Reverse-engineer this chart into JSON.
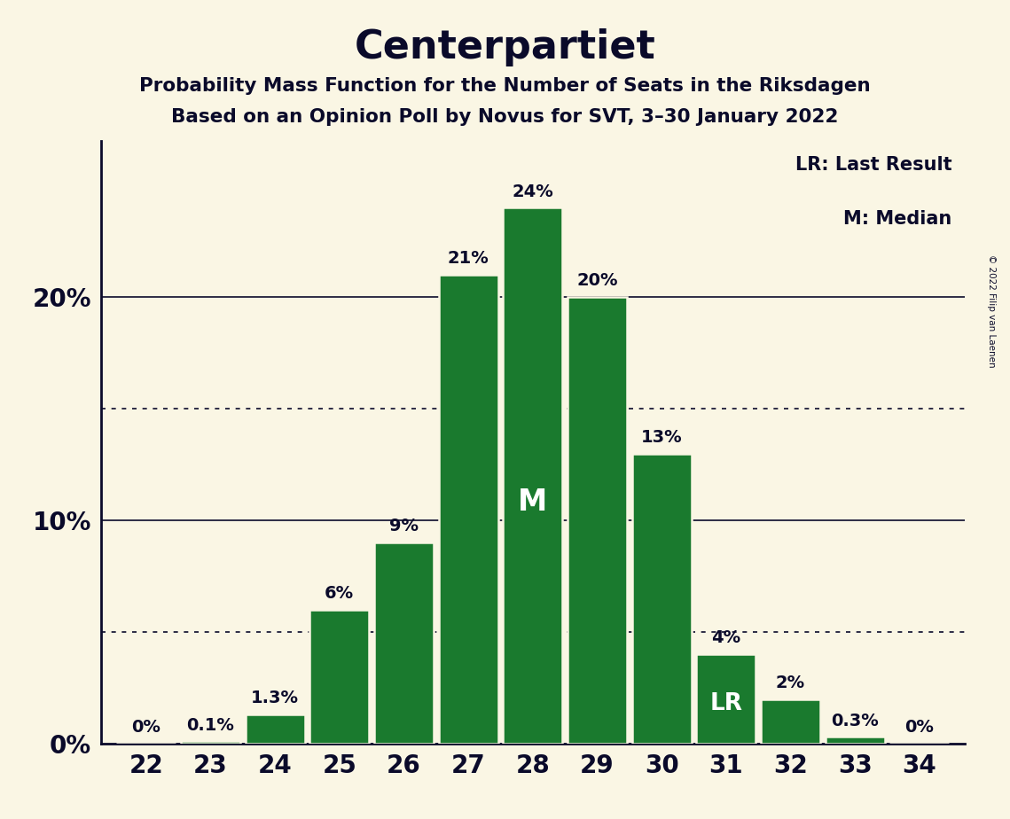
{
  "title": "Centerpartiet",
  "subtitle1": "Probability Mass Function for the Number of Seats in the Riksdagen",
  "subtitle2": "Based on an Opinion Poll by Novus for SVT, 3–30 January 2022",
  "copyright": "© 2022 Filip van Laenen",
  "seats": [
    22,
    23,
    24,
    25,
    26,
    27,
    28,
    29,
    30,
    31,
    32,
    33,
    34
  ],
  "probabilities": [
    0.0,
    0.1,
    1.3,
    6.0,
    9.0,
    21.0,
    24.0,
    20.0,
    13.0,
    4.0,
    2.0,
    0.3,
    0.0
  ],
  "bar_color": "#1a7a2e",
  "bar_edge_color": "#faf6e4",
  "background_color": "#faf6e4",
  "text_color": "#0a0a2a",
  "median_seat": 28,
  "lr_seat": 31,
  "legend_lr": "LR: Last Result",
  "legend_m": "M: Median",
  "solid_lines": [
    10.0,
    20.0
  ],
  "dotted_lines": [
    5.0,
    15.0
  ],
  "ylim": [
    0,
    27
  ],
  "yticks": [
    0,
    10,
    20
  ],
  "ytick_labels": [
    "0%",
    "10%",
    "20%"
  ]
}
